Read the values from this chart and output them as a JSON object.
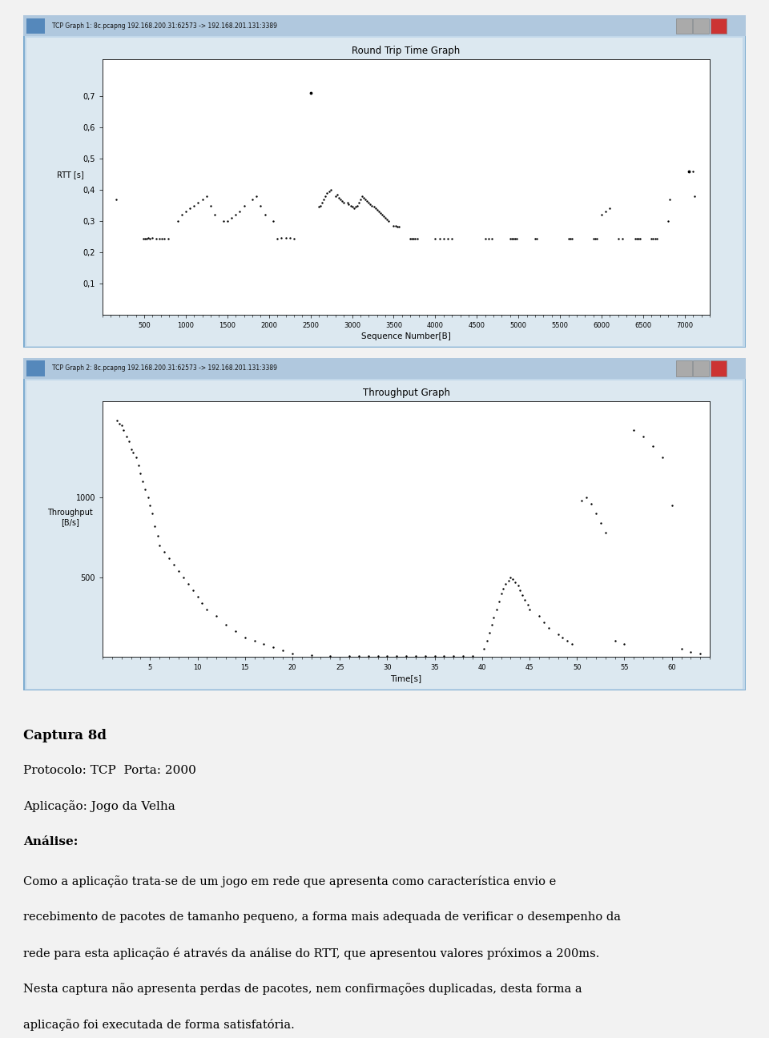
{
  "graph1_title": "Round Trip Time Graph",
  "graph1_ylabel": "RTT [s]",
  "graph1_xlabel": "Sequence Number[B]",
  "graph1_titlebar": "TCP Graph 1: 8c.pcapng 192.168.200.31:62573 -> 192.168.201.131:3389",
  "graph1_xlim": [
    0,
    7300
  ],
  "graph1_ylim": [
    0.0,
    0.82
  ],
  "graph1_yticks": [
    0.1,
    0.2,
    0.3,
    0.4,
    0.5,
    0.6,
    0.7
  ],
  "graph1_xticks": [
    500,
    1000,
    1500,
    2000,
    2500,
    3000,
    3500,
    4000,
    4500,
    5000,
    5500,
    6000,
    6500,
    7000
  ],
  "graph1_points_x": [
    160,
    490,
    510,
    530,
    550,
    570,
    600,
    640,
    680,
    710,
    740,
    790,
    900,
    950,
    1000,
    1050,
    1100,
    1150,
    1200,
    1250,
    1300,
    1350,
    1450,
    1500,
    1550,
    1600,
    1650,
    1700,
    1800,
    1850,
    1900,
    1950,
    2050,
    2100,
    2150,
    2200,
    2250,
    2300,
    2600,
    2620,
    2640,
    2660,
    2680,
    2700,
    2720,
    2740,
    2800,
    2820,
    2840,
    2860,
    2880,
    2900,
    2950,
    2960,
    2980,
    3000,
    3020,
    3040,
    3060,
    3080,
    3100,
    3120,
    3140,
    3160,
    3180,
    3200,
    3220,
    3240,
    3260,
    3280,
    3300,
    3320,
    3340,
    3360,
    3380,
    3400,
    3420,
    3440,
    3500,
    3520,
    3540,
    3560,
    3700,
    3720,
    3740,
    3760,
    3780,
    4000,
    4050,
    4100,
    4150,
    4200,
    4600,
    4640,
    4680,
    4900,
    4920,
    4940,
    4960,
    4980,
    5200,
    5220,
    5600,
    5620,
    5640,
    5900,
    5920,
    5940,
    6000,
    6050,
    6100,
    6200,
    6250,
    6400,
    6420,
    6440,
    6460,
    6600,
    6620,
    6640,
    6660,
    6800,
    6820,
    7100,
    7120
  ],
  "graph1_points_y": [
    0.37,
    0.244,
    0.243,
    0.244,
    0.245,
    0.244,
    0.246,
    0.244,
    0.244,
    0.244,
    0.244,
    0.244,
    0.3,
    0.32,
    0.33,
    0.34,
    0.35,
    0.36,
    0.37,
    0.38,
    0.35,
    0.32,
    0.3,
    0.3,
    0.31,
    0.32,
    0.33,
    0.35,
    0.37,
    0.38,
    0.35,
    0.32,
    0.3,
    0.244,
    0.245,
    0.246,
    0.245,
    0.244,
    0.346,
    0.35,
    0.36,
    0.37,
    0.38,
    0.39,
    0.395,
    0.4,
    0.38,
    0.385,
    0.375,
    0.37,
    0.365,
    0.36,
    0.36,
    0.355,
    0.35,
    0.345,
    0.34,
    0.345,
    0.35,
    0.36,
    0.37,
    0.38,
    0.375,
    0.37,
    0.365,
    0.36,
    0.355,
    0.35,
    0.345,
    0.34,
    0.335,
    0.33,
    0.325,
    0.32,
    0.315,
    0.31,
    0.305,
    0.3,
    0.285,
    0.284,
    0.283,
    0.282,
    0.244,
    0.244,
    0.244,
    0.244,
    0.244,
    0.244,
    0.244,
    0.244,
    0.244,
    0.244,
    0.244,
    0.244,
    0.244,
    0.244,
    0.244,
    0.244,
    0.244,
    0.244,
    0.244,
    0.244,
    0.244,
    0.244,
    0.244,
    0.244,
    0.244,
    0.244,
    0.32,
    0.33,
    0.34,
    0.244,
    0.244,
    0.244,
    0.244,
    0.244,
    0.244,
    0.244,
    0.244,
    0.244,
    0.244,
    0.3,
    0.37,
    0.46,
    0.38
  ],
  "graph1_high_x": [
    2500
  ],
  "graph1_high_y": [
    0.71
  ],
  "graph1_high2_x": [
    7050
  ],
  "graph1_high2_y": [
    0.46
  ],
  "graph2_title": "Throughput Graph",
  "graph2_ylabel": "Throughput\n[B/s]",
  "graph2_xlabel": "Time[s]",
  "graph2_titlebar": "TCP Graph 2: 8c.pcapng 192.168.200.31:62573 -> 192.168.201.131:3389",
  "graph2_xlim": [
    0,
    64
  ],
  "graph2_ylim": [
    0,
    1600
  ],
  "graph2_yticks": [
    500,
    1000
  ],
  "graph2_xticks": [
    5,
    10,
    15,
    20,
    25,
    30,
    35,
    40,
    45,
    50,
    55,
    60
  ],
  "graph2_points_x": [
    1.5,
    1.8,
    2.0,
    2.2,
    2.5,
    2.8,
    3.0,
    3.2,
    3.5,
    3.8,
    4.0,
    4.2,
    4.5,
    4.8,
    5.0,
    5.2,
    5.5,
    5.8,
    6.0,
    6.5,
    7.0,
    7.5,
    8.0,
    8.5,
    9.0,
    9.5,
    10.0,
    10.5,
    11.0,
    12.0,
    13.0,
    14.0,
    15.0,
    16.0,
    17.0,
    18.0,
    19.0,
    20.0,
    22.0,
    24.0,
    26.0,
    27.0,
    28.0,
    29.0,
    30.0,
    31.0,
    32.0,
    33.0,
    34.0,
    35.0,
    36.0,
    37.0,
    38.0,
    39.0,
    40.2,
    40.5,
    40.8,
    41.0,
    41.2,
    41.5,
    41.8,
    42.0,
    42.2,
    42.5,
    42.8,
    43.0,
    43.2,
    43.5,
    43.8,
    44.0,
    44.2,
    44.5,
    44.8,
    45.0,
    46.0,
    46.5,
    47.0,
    48.0,
    48.5,
    49.0,
    49.5,
    50.5,
    51.0,
    51.5,
    52.0,
    52.5,
    53.0,
    54.0,
    55.0,
    56.0,
    57.0,
    58.0,
    59.0,
    60.0,
    61.0,
    62.0,
    63.0
  ],
  "graph2_points_y": [
    1480,
    1460,
    1450,
    1420,
    1380,
    1350,
    1300,
    1280,
    1250,
    1200,
    1150,
    1100,
    1050,
    1000,
    950,
    900,
    820,
    760,
    700,
    660,
    620,
    580,
    540,
    500,
    460,
    420,
    380,
    340,
    300,
    260,
    200,
    160,
    120,
    100,
    80,
    60,
    40,
    20,
    10,
    5,
    5,
    5,
    5,
    5,
    5,
    5,
    5,
    5,
    5,
    5,
    5,
    5,
    5,
    5,
    50,
    100,
    150,
    200,
    250,
    300,
    350,
    400,
    430,
    460,
    480,
    500,
    490,
    470,
    450,
    420,
    390,
    360,
    330,
    300,
    260,
    220,
    180,
    140,
    120,
    100,
    80,
    980,
    1000,
    960,
    900,
    840,
    780,
    100,
    80,
    1420,
    1380,
    1320,
    1250,
    950,
    50,
    30,
    20
  ],
  "text_captura": "Captura 8d",
  "text_protocolo": "Protocolo: TCP  Porta: 2000",
  "text_aplicacao": "Aplicação: Jogo da Velha",
  "text_analise": "Análise:",
  "text_body_lines": [
    "Como a aplicação trata-se de um jogo em rede que apresenta como característica envio e",
    "recebimento de pacotes de tamanho pequeno, a forma mais adequada de verificar o desempenho da",
    "rede para esta aplicação é através da análise do RTT, que apresentou valores próximos a 200ms.",
    "Nesta captura não apresenta perdas de pacotes, nem confirmações duplicadas, desta forma a",
    "aplicação foi executada de forma satisfatória."
  ],
  "window_bg": "#cde0ef",
  "plot_bg": "#ffffff",
  "titlebar_bg": "#b8d0e8",
  "page_bg": "#f2f2f2"
}
